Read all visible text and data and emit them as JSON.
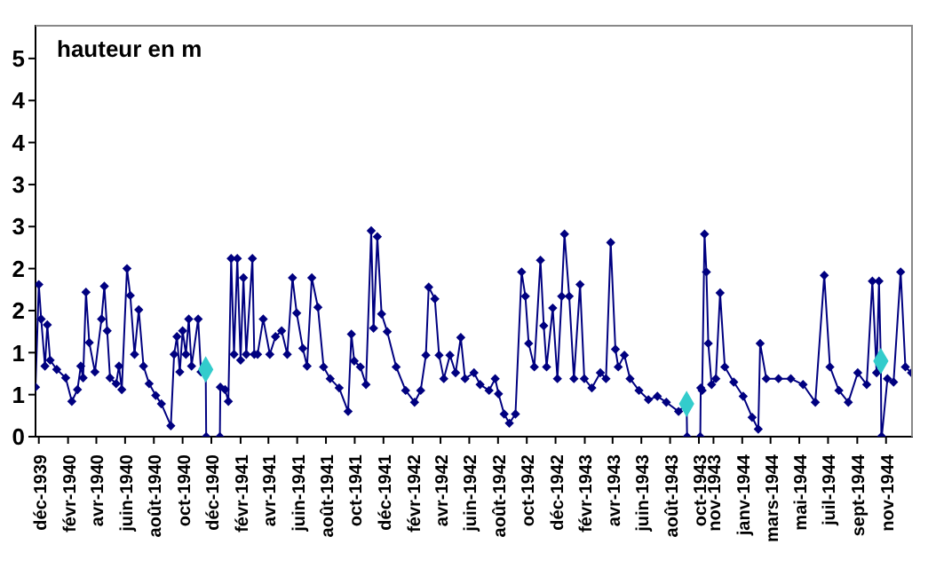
{
  "chart_data": {
    "type": "line",
    "ylabel": "hauteur en m",
    "xlim": [
      "1939-11-24",
      "1944-12-28"
    ],
    "xticks": [
      {
        "value": "1939-12-01",
        "label": "déc-1939"
      },
      {
        "value": "1940-02-01",
        "label": "févr-1940"
      },
      {
        "value": "1940-04-01",
        "label": "avr-1940"
      },
      {
        "value": "1940-06-01",
        "label": "juin-1940"
      },
      {
        "value": "1940-08-01",
        "label": "août-1940"
      },
      {
        "value": "1940-10-01",
        "label": "oct-1940"
      },
      {
        "value": "1940-12-01",
        "label": "déc-1940"
      },
      {
        "value": "1941-02-01",
        "label": "févr-1941"
      },
      {
        "value": "1941-04-01",
        "label": "avr-1941"
      },
      {
        "value": "1941-06-01",
        "label": "juin-1941"
      },
      {
        "value": "1941-08-01",
        "label": "août-1941"
      },
      {
        "value": "1941-10-01",
        "label": "oct-1941"
      },
      {
        "value": "1941-12-01",
        "label": "déc-1941"
      },
      {
        "value": "1942-02-01",
        "label": "févr-1942"
      },
      {
        "value": "1942-04-01",
        "label": "avr-1942"
      },
      {
        "value": "1942-06-01",
        "label": "juin-1942"
      },
      {
        "value": "1942-08-01",
        "label": "août-1942"
      },
      {
        "value": "1942-10-01",
        "label": "oct-1942"
      },
      {
        "value": "1942-12-01",
        "label": "déc-1942"
      },
      {
        "value": "1943-02-01",
        "label": "févr-1943"
      },
      {
        "value": "1943-04-01",
        "label": "avr-1943"
      },
      {
        "value": "1943-06-01",
        "label": "juin-1943"
      },
      {
        "value": "1943-08-01",
        "label": "août-1943"
      },
      {
        "value": "1943-10-01",
        "label": "oct-1943"
      },
      {
        "value": "1943-11-01",
        "label": "nov-1943"
      },
      {
        "value": "1944-01-01",
        "label": "janv-1944"
      },
      {
        "value": "1944-03-01",
        "label": "mars-1944"
      },
      {
        "value": "1944-05-01",
        "label": "mai-1944"
      },
      {
        "value": "1944-07-01",
        "label": "juil-1944"
      },
      {
        "value": "1944-09-01",
        "label": "sept-1944"
      },
      {
        "value": "1944-11-01",
        "label": "nov-1944"
      }
    ],
    "ylim": [
      0,
      4.9
    ],
    "yticks": [
      0,
      {
        "value": 0.5,
        "label": "1"
      },
      1,
      {
        "value": 1.5,
        "label": "2"
      },
      2,
      {
        "value": 2.5,
        "label": "3"
      },
      3,
      {
        "value": 3.5,
        "label": "4"
      },
      4,
      {
        "value": 4.5,
        "label": "5"
      }
    ],
    "marker": "diamond",
    "line_style": "solid",
    "series": [
      {
        "color": "#000080",
        "x": [
          "1939-11-24",
          "1939-12-01",
          "1939-12-06",
          "1939-12-14",
          "1939-12-19",
          "1939-12-25",
          "1940-01-08",
          "1940-01-27",
          "1940-02-09",
          "1940-02-21",
          "1940-02-28",
          "1940-03-04",
          "1940-03-10",
          "1940-03-17",
          "1940-03-29",
          "1940-04-12",
          "1940-04-18",
          "1940-04-24",
          "1940-04-30",
          "1940-05-13",
          "1940-05-19",
          "1940-05-25",
          "1940-06-05",
          "1940-06-12",
          "1940-06-21",
          "1940-06-30",
          "1940-07-10",
          "1940-07-22",
          "1940-08-05",
          "1940-08-17",
          "1940-09-06",
          "1940-09-13",
          "1940-09-19",
          "1940-09-25",
          "1940-10-01",
          "1940-10-08",
          "1940-10-14",
          "1940-10-20",
          "1940-11-03",
          "1940-11-09",
          "1940-11-19",
          "1940-11-20",
          "1940-12-19",
          "1940-12-20",
          "1940-12-30",
          "1941-01-06",
          "1941-01-12",
          "1941-01-18",
          "1941-01-25",
          "1941-02-01",
          "1941-02-07",
          "1941-02-13",
          "1941-02-26",
          "1941-03-02",
          "1941-03-09",
          "1941-03-21",
          "1941-04-04",
          "1941-04-16",
          "1941-04-29",
          "1941-05-11",
          "1941-05-22",
          "1941-05-31",
          "1941-06-13",
          "1941-06-22",
          "1941-07-02",
          "1941-07-15",
          "1941-07-27",
          "1941-08-10",
          "1941-08-29",
          "1941-09-17",
          "1941-09-24",
          "1941-09-30",
          "1941-10-13",
          "1941-10-25",
          "1941-11-05",
          "1941-11-10",
          "1941-11-18",
          "1941-11-27",
          "1941-12-09",
          "1941-12-28",
          "1942-01-17",
          "1942-02-05",
          "1942-02-18",
          "1942-03-01",
          "1942-03-07",
          "1942-03-20",
          "1942-03-29",
          "1942-04-08",
          "1942-04-21",
          "1942-05-03",
          "1942-05-14",
          "1942-05-23",
          "1942-06-11",
          "1942-06-24",
          "1942-07-13",
          "1942-07-26",
          "1942-08-02",
          "1942-08-14",
          "1942-08-25",
          "1942-09-07",
          "1942-09-20",
          "1942-09-28",
          "1942-10-05",
          "1942-10-17",
          "1942-10-30",
          "1942-11-06",
          "1942-11-12",
          "1942-11-25",
          "1942-12-05",
          "1942-12-14",
          "1942-12-20",
          "1942-12-30",
          "1943-01-09",
          "1943-01-22",
          "1943-01-31",
          "1943-02-16",
          "1943-03-06",
          "1943-03-18",
          "1943-03-28",
          "1943-04-07",
          "1943-04-13",
          "1943-04-26",
          "1943-05-08",
          "1943-05-27",
          "1943-06-16",
          "1943-07-05",
          "1943-07-24",
          "1943-08-19",
          "1943-09-05",
          "1943-09-06",
          "1943-10-04",
          "1943-10-05",
          "1943-10-08",
          "1943-10-13",
          "1943-10-17",
          "1943-10-21",
          "1943-10-28",
          "1943-11-06",
          "1943-11-15",
          "1943-11-25",
          "1943-12-14",
          "1944-01-03",
          "1944-01-22",
          "1944-02-04",
          "1944-02-08",
          "1944-02-21",
          "1944-03-18",
          "1944-04-13",
          "1944-05-09",
          "1944-06-04",
          "1944-06-23",
          "1944-07-05",
          "1944-07-24",
          "1944-08-13",
          "1944-09-02",
          "1944-09-21",
          "1944-10-03",
          "1944-10-12",
          "1944-10-17",
          "1944-10-21",
          "1944-10-22",
          "1944-10-23",
          "1944-11-04",
          "1944-11-17",
          "1944-12-02",
          "1944-12-12",
          "1944-12-25"
        ],
        "values": [
          0.59,
          1.81,
          1.4,
          0.84,
          1.33,
          0.91,
          0.8,
          0.7,
          0.42,
          0.56,
          0.84,
          0.7,
          1.72,
          1.12,
          0.77,
          1.4,
          1.79,
          1.26,
          0.7,
          0.63,
          0.84,
          0.56,
          2.0,
          1.68,
          0.98,
          1.51,
          0.84,
          0.63,
          0.49,
          0.39,
          0.13,
          0.98,
          1.19,
          0.77,
          1.26,
          0.98,
          1.4,
          0.84,
          1.4,
          0.77,
          0.8,
          0,
          0,
          0.59,
          0.56,
          0.42,
          2.12,
          0.98,
          2.12,
          0.91,
          1.89,
          0.98,
          2.12,
          0.98,
          0.98,
          1.4,
          0.98,
          1.19,
          1.26,
          0.98,
          1.89,
          1.47,
          1.05,
          0.84,
          1.89,
          1.54,
          0.83,
          0.69,
          0.58,
          0.3,
          1.22,
          0.9,
          0.83,
          0.62,
          2.45,
          1.29,
          2.38,
          1.46,
          1.25,
          0.83,
          0.55,
          0.41,
          0.55,
          0.97,
          1.78,
          1.64,
          0.97,
          0.69,
          0.97,
          0.76,
          1.18,
          0.69,
          0.76,
          0.62,
          0.55,
          0.69,
          0.51,
          0.27,
          0.16,
          0.27,
          1.96,
          1.67,
          1.11,
          0.83,
          2.1,
          1.32,
          0.83,
          1.53,
          0.69,
          1.67,
          2.41,
          1.67,
          0.69,
          1.81,
          0.69,
          0.58,
          0.76,
          0.69,
          2.31,
          1.04,
          0.83,
          0.97,
          0.69,
          0.55,
          0.44,
          0.48,
          0.41,
          0.3,
          0.39,
          0,
          0,
          0.58,
          0.55,
          2.41,
          1.96,
          1.11,
          0.62,
          0.69,
          1.71,
          0.83,
          0.65,
          0.48,
          0.23,
          0.09,
          1.11,
          0.69,
          0.69,
          0.69,
          0.62,
          0.41,
          1.92,
          0.83,
          0.55,
          0.41,
          0.76,
          0.62,
          1.85,
          0.76,
          1.85,
          0.9,
          0,
          0,
          0.69,
          0.65,
          1.96,
          0.83,
          0.76
        ]
      },
      {
        "type": "scatter",
        "color": "#33cccc",
        "x": [
          "1940-11-19",
          "1943-09-05",
          "1944-10-21"
        ],
        "values": [
          0.8,
          0.39,
          0.9
        ]
      }
    ]
  }
}
